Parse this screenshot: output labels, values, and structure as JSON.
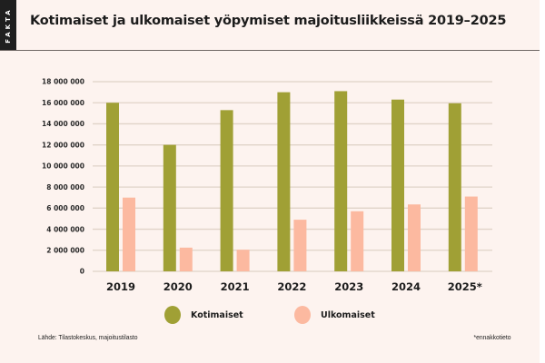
{
  "tab_label": "FAKTA",
  "chart_data": {
    "type": "bar",
    "title": "Kotimaiset ja ulkomaiset yöpymiset majoitusliikkeissä 2019–2025",
    "xlabel": "",
    "ylabel": "",
    "categories": [
      "2019",
      "2020",
      "2021",
      "2022",
      "2023",
      "2024",
      "2025*"
    ],
    "series": [
      {
        "name": "Kotimaiset",
        "color": "#a0a035",
        "values": [
          16000000,
          12000000,
          15300000,
          17000000,
          17100000,
          16300000,
          15950000
        ]
      },
      {
        "name": "Ulkomaiset",
        "color": "#fcb9a0",
        "values": [
          7000000,
          2250000,
          2050000,
          4900000,
          5700000,
          6350000,
          7100000
        ]
      }
    ],
    "ylim": [
      0,
      18000000
    ],
    "yticks": [
      0,
      2000000,
      4000000,
      6000000,
      8000000,
      10000000,
      12000000,
      14000000,
      16000000,
      18000000
    ],
    "ytick_labels": [
      "0",
      "2 000 000",
      "4 000 000",
      "6 000 000",
      "8 000 000",
      "10 000 000",
      "12 000 000",
      "14 000 000",
      "16 000 000",
      "18 000 000"
    ],
    "grid": true,
    "legend_position": "bottom-center"
  },
  "footer": {
    "source": "Lähde: Tilastokeskus, majoitustilasto",
    "note": "*ennakkotieto"
  }
}
